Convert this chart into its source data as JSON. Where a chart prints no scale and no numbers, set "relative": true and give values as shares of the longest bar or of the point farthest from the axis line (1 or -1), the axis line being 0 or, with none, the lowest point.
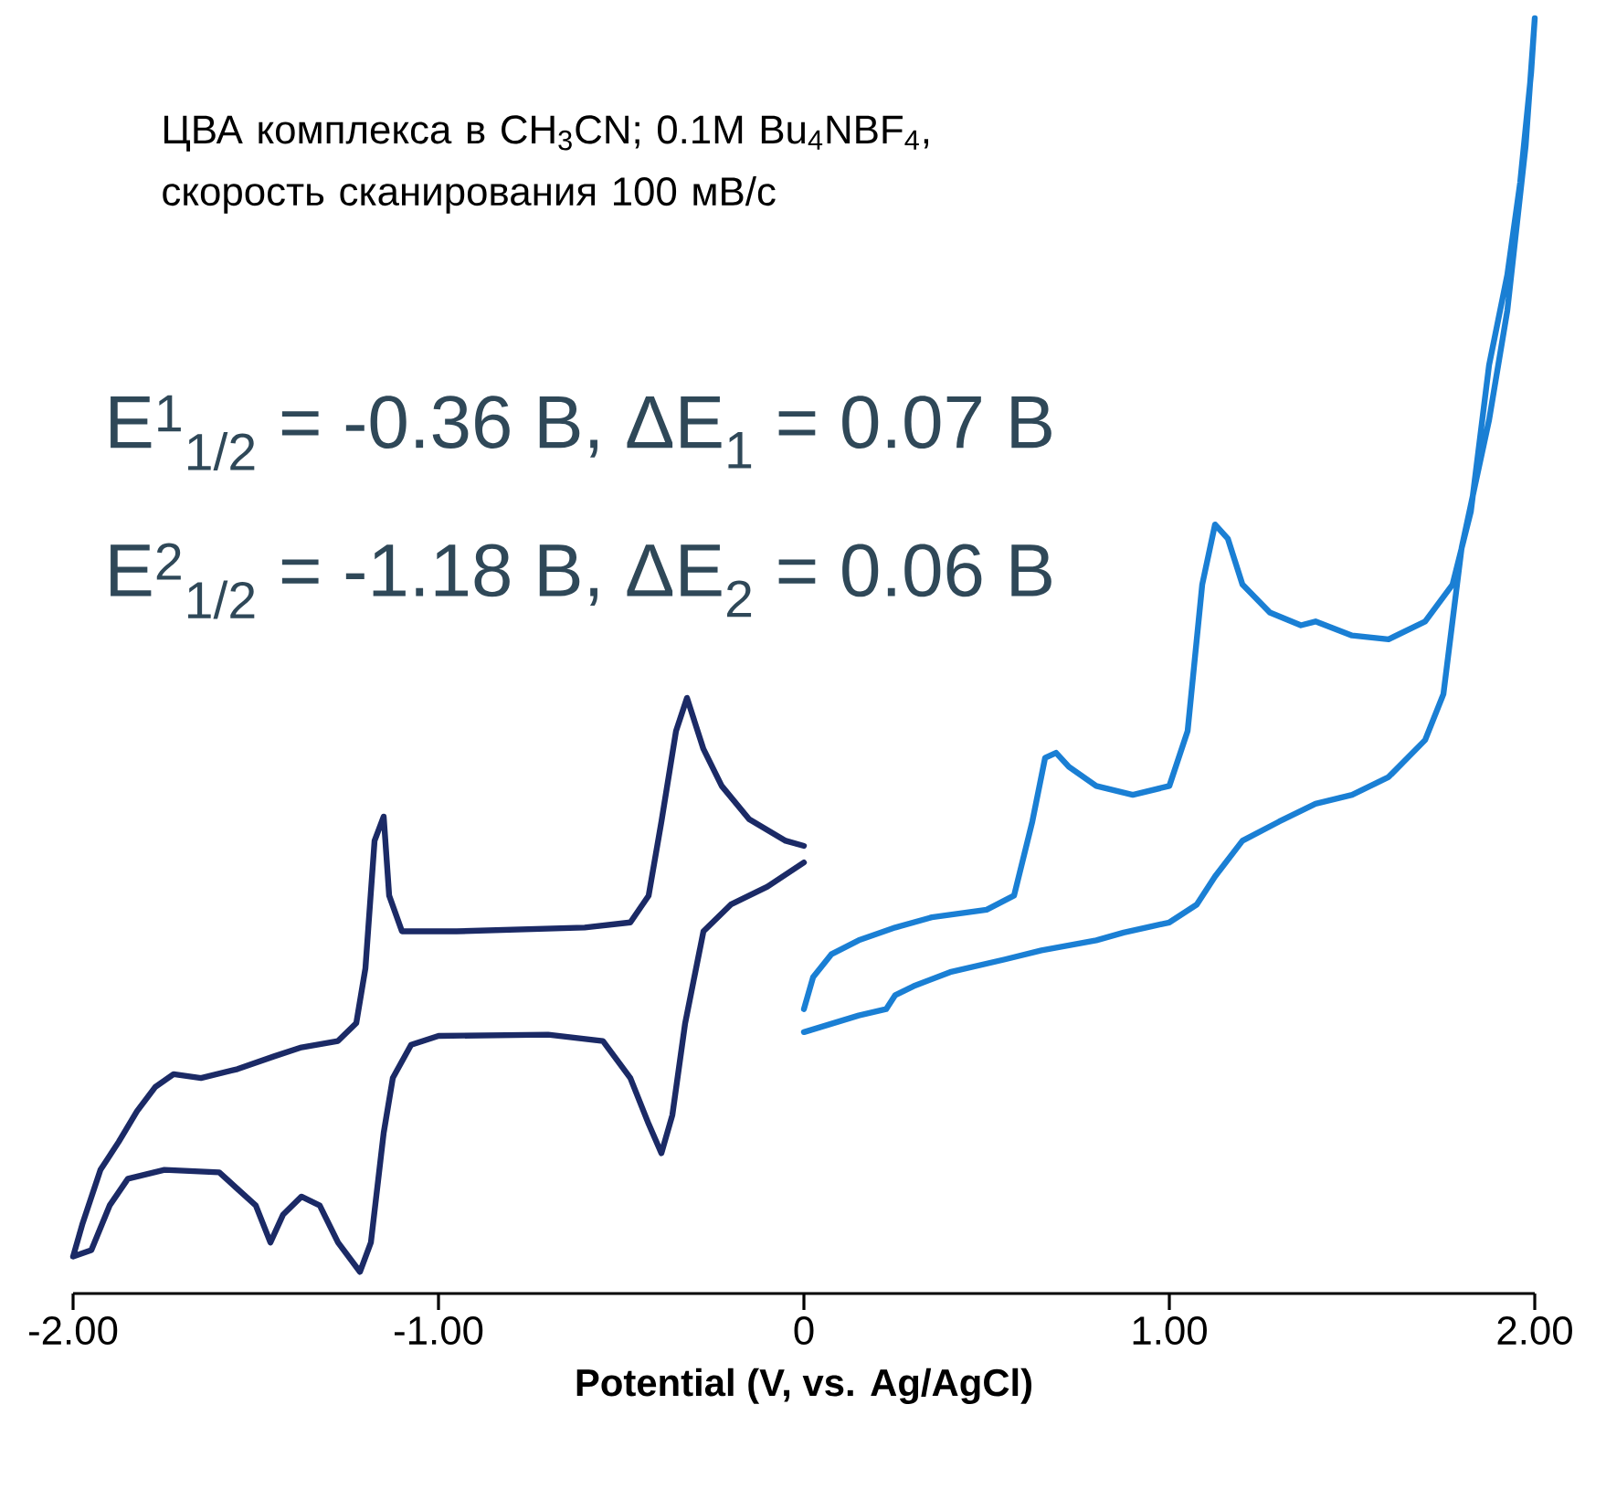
{
  "chart_data": {
    "type": "line",
    "relative": true,
    "xlabel": "Potential (V, vs. Ag/AgCl)",
    "xlim": [
      -2,
      2
    ],
    "xticks": [
      {
        "value": -2,
        "label": "-2.00"
      },
      {
        "value": -1,
        "label": "-1.00"
      },
      0,
      {
        "value": 1,
        "label": "1.00"
      },
      {
        "value": 2,
        "label": "2.00"
      }
    ],
    "tick_labels": "x",
    "annotations": [
      "ЦВА комплекса в CH$_{3}$CN; 0.1M Bu$_{4}$NBF$_{4}$, скорость сканирования 100 мВ/с",
      "E$^{1}$$_{1/2}$ = -0.36 В, ΔE$_{1}$ = 0.07 В",
      "E$^{2}$$_{1/2}$ = -1.18 В, ΔE$_{2}$ = 0.06 В"
    ],
    "series": [
      {
        "color": "#1b2a66",
        "x": [
          0,
          -0.05,
          -0.15,
          -0.225,
          -0.275,
          -0.32,
          -0.35,
          -0.39,
          -0.425,
          -0.475,
          -0.6,
          -0.95,
          -1.1,
          -1.135,
          -1.15,
          -1.175,
          -1.2,
          -1.225,
          -1.275,
          -1.375,
          -1.45,
          -1.55,
          -1.65,
          -1.725,
          -1.775,
          -1.825,
          -1.875,
          -1.925,
          -1.975,
          -2.0,
          -1.95,
          -1.9,
          -1.85,
          -1.75,
          -1.6,
          -1.5,
          -1.46,
          -1.425,
          -1.375,
          -1.325,
          -1.275,
          -1.215,
          -1.185,
          -1.15,
          -1.125,
          -1.075,
          -1.0,
          -0.7,
          -0.55,
          -0.475,
          -0.425,
          -0.39,
          -0.36,
          -0.325,
          -0.275,
          -0.2,
          -0.1,
          0
        ],
        "values": [
          0.351,
          0.355,
          0.372,
          0.398,
          0.427,
          0.467,
          0.441,
          0.37,
          0.312,
          0.291,
          0.287,
          0.284,
          0.284,
          0.312,
          0.374,
          0.355,
          0.255,
          0.212,
          0.198,
          0.193,
          0.186,
          0.176,
          0.169,
          0.172,
          0.162,
          0.143,
          0.119,
          0.097,
          0.054,
          0.029,
          0.034,
          0.069,
          0.09,
          0.097,
          0.095,
          0.069,
          0.04,
          0.062,
          0.076,
          0.069,
          0.04,
          0.017,
          0.04,
          0.126,
          0.169,
          0.195,
          0.202,
          0.203,
          0.198,
          0.169,
          0.133,
          0.11,
          0.14,
          0.212,
          0.284,
          0.305,
          0.319,
          0.338
        ]
      },
      {
        "color": "#1a7fd4",
        "x": [
          0,
          0.025,
          0.075,
          0.15,
          0.25,
          0.35,
          0.5,
          0.575,
          0.625,
          0.66,
          0.69,
          0.725,
          0.8,
          0.9,
          1.0,
          1.05,
          1.09,
          1.125,
          1.16,
          1.2,
          1.275,
          1.36,
          1.4,
          1.5,
          1.6,
          1.7,
          1.775,
          1.825,
          1.875,
          1.925,
          1.96,
          1.99,
          2.0,
          1.975,
          1.925,
          1.875,
          1.8,
          1.75,
          1.7,
          1.6,
          1.5,
          1.4,
          1.3,
          1.2,
          1.125,
          1.075,
          1.0,
          0.875,
          0.8,
          0.65,
          0.55,
          0.4,
          0.3,
          0.25,
          0.225,
          0.15,
          0
        ],
        "values": [
          0.223,
          0.248,
          0.266,
          0.277,
          0.287,
          0.295,
          0.301,
          0.312,
          0.37,
          0.42,
          0.424,
          0.413,
          0.398,
          0.391,
          0.398,
          0.441,
          0.556,
          0.603,
          0.592,
          0.556,
          0.534,
          0.524,
          0.527,
          0.516,
          0.513,
          0.527,
          0.556,
          0.613,
          0.728,
          0.799,
          0.871,
          0.957,
          1,
          0.9,
          0.771,
          0.685,
          0.585,
          0.47,
          0.434,
          0.405,
          0.391,
          0.384,
          0.37,
          0.355,
          0.327,
          0.305,
          0.291,
          0.283,
          0.277,
          0.269,
          0.262,
          0.252,
          0.241,
          0.234,
          0.223,
          0.218,
          0.205
        ]
      }
    ]
  }
}
